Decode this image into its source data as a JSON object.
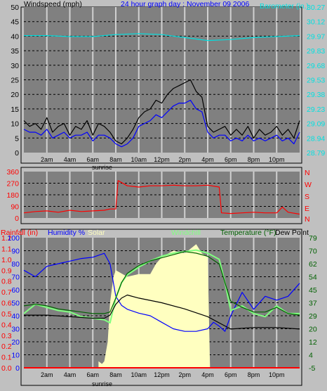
{
  "colors": {
    "background": "#c0c0c0",
    "plot_bg": "#808080",
    "grid": "#000000",
    "vgrid": "#d0d0d0",
    "wind": "#000000",
    "wind_avg": "#0000ff",
    "wind_min": "#404040",
    "barometer": "#00e0e0",
    "direction": "#ff0000",
    "humidity": "#0000ff",
    "solar": "#ffffc0",
    "windchill": "#80ff80",
    "temperature": "#006000",
    "dewpoint": "#000000",
    "rain": "#ff0000"
  },
  "top_panel": {
    "title_left": "Windspeed (mph)",
    "title_center": "24 hour graph day : November 09 2006",
    "title_right": "Barometer (in.)"
  },
  "dir_panel": {
    "compass": [
      "N",
      "W",
      "S",
      "E",
      "N"
    ]
  },
  "bottom_panel": {
    "header": {
      "rainfall": "Rainfall (in)",
      "humidity": "Humidity %",
      "solar": "Solar",
      "windchill": "Windchill",
      "temperature": "Temperature (°F)",
      "dewpoint": "Dew Point"
    }
  },
  "chart_data": [
    {
      "type": "line",
      "panel": "wind",
      "x_ticks": [
        "2am",
        "4am",
        "6am",
        "8am",
        "10am",
        "12pm",
        "2pm",
        "4pm",
        "6pm",
        "8pm",
        "10pm"
      ],
      "x_label_extra": "sunrise",
      "y_left_ticks": [
        0,
        5,
        10,
        15,
        20,
        25,
        30,
        35,
        40,
        45,
        50
      ],
      "y_left_range": [
        0,
        50
      ],
      "y_right_ticks": [
        "28.79",
        "28.94",
        "29.09",
        "29.23",
        "29.38",
        "29.53",
        "29.68",
        "29.83",
        "29.97",
        "30.12",
        "30.27"
      ],
      "y_right_range": [
        28.79,
        30.27
      ],
      "series": [
        {
          "key": "wind_gust",
          "hours": [
            0,
            0.5,
            1,
            1.5,
            2,
            2.5,
            3,
            3.5,
            4,
            4.5,
            5,
            5.5,
            6,
            6.5,
            7,
            7.5,
            8,
            8.5,
            9,
            9.5,
            10,
            10.5,
            11,
            11.5,
            12,
            12.5,
            13,
            13.5,
            14,
            14.5,
            15,
            15.5,
            16,
            16.5,
            17,
            17.5,
            18,
            18.5,
            19,
            19.5,
            20,
            20.5,
            21,
            21.5,
            22,
            22.5,
            23,
            23.5,
            24
          ],
          "values": [
            11,
            9,
            10,
            8,
            12,
            7,
            9,
            10,
            6,
            9,
            8,
            11,
            6,
            10,
            9,
            7,
            4,
            3,
            5,
            8,
            12,
            14,
            15,
            18,
            17,
            20,
            22,
            23,
            24,
            25,
            21,
            19,
            9,
            7,
            8,
            9,
            6,
            8,
            6,
            9,
            5,
            8,
            6,
            7,
            9,
            6,
            8,
            5,
            11
          ]
        },
        {
          "key": "wind_avg",
          "hours": [
            0,
            0.5,
            1,
            1.5,
            2,
            2.5,
            3,
            3.5,
            4,
            4.5,
            5,
            5.5,
            6,
            6.5,
            7,
            7.5,
            8,
            8.5,
            9,
            9.5,
            10,
            10.5,
            11,
            11.5,
            12,
            12.5,
            13,
            13.5,
            14,
            14.5,
            15,
            15.5,
            16,
            16.5,
            17,
            17.5,
            18,
            18.5,
            19,
            19.5,
            20,
            20.5,
            21,
            21.5,
            22,
            22.5,
            23,
            23.5,
            24
          ],
          "values": [
            8,
            7,
            7,
            6,
            8,
            5,
            6,
            7,
            5,
            6,
            6,
            7,
            4,
            6,
            6,
            5,
            3,
            2,
            3,
            5,
            9,
            10,
            11,
            13,
            12,
            14,
            16,
            17,
            17,
            18,
            15,
            14,
            7,
            5,
            6,
            6,
            4,
            5,
            4,
            6,
            4,
            5,
            4,
            5,
            6,
            4,
            5,
            3,
            7
          ]
        },
        {
          "key": "barometer",
          "hours": [
            0,
            2,
            4,
            6,
            8,
            10,
            12,
            14,
            16,
            18,
            20,
            22,
            24
          ],
          "values": [
            29.98,
            29.98,
            29.97,
            29.97,
            29.99,
            30.0,
            29.99,
            29.96,
            29.93,
            29.94,
            29.96,
            29.97,
            29.98
          ]
        }
      ]
    },
    {
      "type": "line",
      "panel": "wind_direction",
      "y_ticks": [
        0,
        90,
        180,
        270,
        360
      ],
      "y_range": [
        0,
        360
      ],
      "series": [
        {
          "key": "direction",
          "hours": [
            0,
            1,
            2,
            3,
            4,
            5,
            6,
            7,
            7.5,
            8,
            8.2,
            9,
            10,
            11,
            12,
            13,
            14,
            15,
            16,
            17,
            17.2,
            18,
            19,
            20,
            21,
            22,
            22.5,
            23,
            24
          ],
          "values": [
            40,
            50,
            55,
            45,
            60,
            50,
            55,
            60,
            70,
            70,
            290,
            250,
            240,
            250,
            250,
            255,
            250,
            250,
            255,
            240,
            40,
            35,
            40,
            45,
            40,
            40,
            85,
            45,
            30
          ]
        }
      ]
    },
    {
      "type": "line",
      "panel": "temperature_humidity",
      "y_rain_ticks": [
        "0.0",
        "0.1",
        "0.2",
        "0.3",
        "0.4",
        "0.5",
        "0.6",
        "0.7",
        "0.8",
        "0.9",
        "1.0",
        "1.1",
        "1.2"
      ],
      "y_rain_range": [
        0,
        1.2
      ],
      "y_humidity_ticks": [
        0,
        10,
        20,
        30,
        40,
        50,
        60,
        70,
        80,
        90,
        100
      ],
      "y_humidity_range": [
        0,
        100
      ],
      "y_temp_ticks": [
        -5,
        4,
        12,
        20,
        29,
        37,
        45,
        54,
        62,
        70,
        79
      ],
      "y_temp_range": [
        -5,
        79
      ],
      "series": [
        {
          "key": "humidity",
          "hours": [
            0,
            1,
            2,
            3,
            4,
            5,
            6,
            7,
            7.5,
            8,
            8.5,
            9,
            10,
            11,
            12,
            13,
            14,
            15,
            16,
            16.5,
            17,
            17.5,
            18,
            19,
            20,
            21,
            22,
            23,
            24
          ],
          "values": [
            75,
            70,
            78,
            80,
            82,
            84,
            85,
            88,
            80,
            55,
            48,
            45,
            42,
            40,
            35,
            30,
            28,
            28,
            30,
            35,
            32,
            28,
            40,
            58,
            45,
            55,
            52,
            55,
            65
          ]
        },
        {
          "key": "windchill",
          "hours": [
            0,
            1,
            2,
            3,
            4,
            5,
            6,
            7,
            7.5,
            8,
            8.5,
            9,
            10,
            11,
            12,
            13,
            14,
            15,
            16,
            17,
            17.5,
            18,
            19,
            20,
            21,
            22,
            23,
            24
          ],
          "values": [
            30,
            36,
            34,
            32,
            31,
            28,
            27,
            26,
            24,
            40,
            50,
            55,
            60,
            64,
            67,
            69,
            70,
            71,
            69,
            65,
            50,
            32,
            35,
            30,
            28,
            35,
            30,
            30
          ]
        },
        {
          "key": "temperature",
          "hours": [
            0,
            1,
            2,
            3,
            4,
            5,
            6,
            7,
            7.5,
            8,
            8.5,
            9,
            10,
            11,
            12,
            13,
            14,
            15,
            16,
            17,
            17.5,
            18,
            19,
            20,
            21,
            22,
            23,
            24
          ],
          "values": [
            35,
            36,
            35,
            33,
            32,
            31,
            30,
            30,
            31,
            40,
            50,
            56,
            61,
            64,
            66,
            68,
            70,
            69,
            67,
            62,
            50,
            38,
            34,
            31,
            31,
            34,
            30,
            29
          ]
        },
        {
          "key": "dewpoint",
          "hours": [
            0,
            2,
            4,
            6,
            7,
            7.5,
            8,
            8.5,
            9,
            10,
            12,
            14,
            16,
            17,
            17.5,
            18,
            20,
            22,
            24
          ],
          "values": [
            29,
            29,
            28,
            27,
            27,
            29,
            36,
            40,
            42,
            40,
            37,
            33,
            28,
            24,
            22,
            20,
            21,
            21,
            20
          ]
        },
        {
          "key": "solar",
          "hours": [
            6.5,
            6.8,
            7,
            7.3,
            7.5,
            7.8,
            8,
            9,
            10,
            11,
            11.5,
            12,
            13,
            14,
            15,
            15.5,
            16,
            16.2
          ],
          "values": [
            5,
            3,
            5,
            20,
            50,
            70,
            75,
            70,
            72,
            72,
            80,
            85,
            90,
            88,
            95,
            88,
            85,
            0
          ]
        },
        {
          "key": "rain",
          "hours": [
            0,
            24
          ],
          "values": [
            0,
            0
          ]
        }
      ]
    }
  ]
}
